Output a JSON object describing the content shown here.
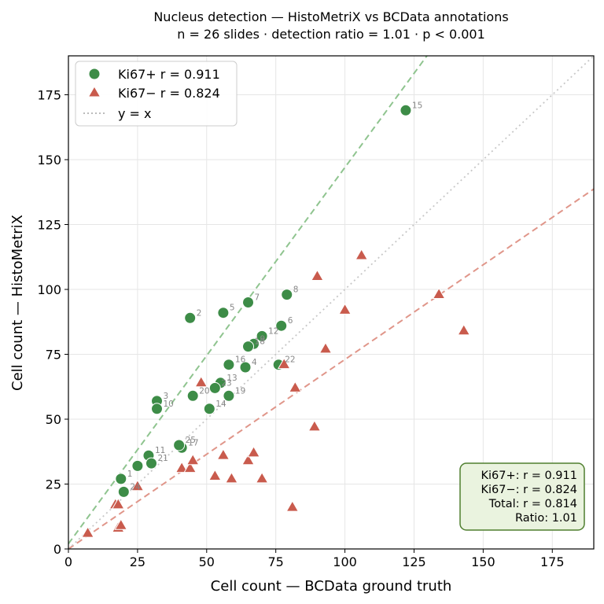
{
  "chart_data": {
    "type": "scatter",
    "title": "Nucleus detection — HistoMetriX vs BCData annotations",
    "subtitle": "n = 26 slides  ·  detection ratio = 1.01  ·  p < 0.001",
    "xlabel": "Cell count — BCData ground truth",
    "ylabel": "Cell count — HistoMetriX",
    "xlim": [
      0,
      190
    ],
    "ylim": [
      0,
      190
    ],
    "x_ticks": [
      0,
      25,
      50,
      75,
      100,
      125,
      150,
      175
    ],
    "y_ticks": [
      0,
      25,
      50,
      75,
      100,
      125,
      150,
      175
    ],
    "x_tick_labels": [
      "0",
      "25",
      "50",
      "75",
      "100",
      "125",
      "150",
      "175"
    ],
    "y_tick_labels": [
      "0",
      "25",
      "50",
      "75",
      "100",
      "125",
      "150",
      "175"
    ],
    "grid": true,
    "legend_position": "top-left",
    "legend": [
      {
        "label": "Ki67+  r = 0.911",
        "marker": "circle",
        "color": "#3d8c47"
      },
      {
        "label": "Ki67−  r = 0.824",
        "marker": "triangle",
        "color": "#c95b4d"
      },
      {
        "label": "y = x",
        "marker": "dotted-line",
        "color": "#bbbbbb"
      }
    ],
    "series": [
      {
        "name": "Ki67+",
        "marker": "circle",
        "color": "#3d8c47",
        "points": [
          {
            "x": 19,
            "y": 27,
            "label": "1"
          },
          {
            "x": 44,
            "y": 89,
            "label": "2"
          },
          {
            "x": 32,
            "y": 57,
            "label": "3"
          },
          {
            "x": 64,
            "y": 70,
            "label": "4"
          },
          {
            "x": 56,
            "y": 91,
            "label": "5"
          },
          {
            "x": 77,
            "y": 86,
            "label": "6"
          },
          {
            "x": 65,
            "y": 95,
            "label": "7"
          },
          {
            "x": 79,
            "y": 98,
            "label": "8"
          },
          {
            "x": 67,
            "y": 79,
            "label": "9"
          },
          {
            "x": 32,
            "y": 54,
            "label": "10"
          },
          {
            "x": 29,
            "y": 36,
            "label": "11"
          },
          {
            "x": 70,
            "y": 82,
            "label": "12"
          },
          {
            "x": 55,
            "y": 64,
            "label": "13"
          },
          {
            "x": 51,
            "y": 54,
            "label": "14"
          },
          {
            "x": 122,
            "y": 169,
            "label": "15"
          },
          {
            "x": 58,
            "y": 71,
            "label": "16"
          },
          {
            "x": 41,
            "y": 39,
            "label": "17"
          },
          {
            "x": 65,
            "y": 78,
            "label": "18"
          },
          {
            "x": 58,
            "y": 59,
            "label": "19"
          },
          {
            "x": 45,
            "y": 59,
            "label": "20"
          },
          {
            "x": 30,
            "y": 33,
            "label": "21"
          },
          {
            "x": 76,
            "y": 71,
            "label": "22"
          },
          {
            "x": 53,
            "y": 62,
            "label": "23"
          },
          {
            "x": 20,
            "y": 22,
            "label": "24"
          },
          {
            "x": 40,
            "y": 40,
            "label": "25"
          },
          {
            "x": 25,
            "y": 32,
            "label": ""
          }
        ]
      },
      {
        "name": "Ki67−",
        "marker": "triangle",
        "color": "#c95b4d",
        "points": [
          {
            "x": 7,
            "y": 6
          },
          {
            "x": 18,
            "y": 8
          },
          {
            "x": 19,
            "y": 9
          },
          {
            "x": 17,
            "y": 17
          },
          {
            "x": 18,
            "y": 17
          },
          {
            "x": 25,
            "y": 24
          },
          {
            "x": 41,
            "y": 31
          },
          {
            "x": 44,
            "y": 31
          },
          {
            "x": 45,
            "y": 34
          },
          {
            "x": 53,
            "y": 28
          },
          {
            "x": 56,
            "y": 36
          },
          {
            "x": 59,
            "y": 27
          },
          {
            "x": 65,
            "y": 34
          },
          {
            "x": 67,
            "y": 37
          },
          {
            "x": 70,
            "y": 27
          },
          {
            "x": 81,
            "y": 16
          },
          {
            "x": 82,
            "y": 62
          },
          {
            "x": 89,
            "y": 47
          },
          {
            "x": 90,
            "y": 105
          },
          {
            "x": 93,
            "y": 77
          },
          {
            "x": 100,
            "y": 92
          },
          {
            "x": 106,
            "y": 113
          },
          {
            "x": 134,
            "y": 98
          },
          {
            "x": 143,
            "y": 84
          },
          {
            "x": 48,
            "y": 64
          },
          {
            "x": 78,
            "y": 71
          }
        ]
      }
    ],
    "fit_lines": [
      {
        "series": "Ki67+",
        "style": "dashed",
        "color": "#8fc48f",
        "slope": 1.45,
        "intercept": 2
      },
      {
        "series": "Ki67−",
        "style": "dashed",
        "color": "#e0968a",
        "slope": 0.73,
        "intercept": 0
      },
      {
        "series": "y = x",
        "style": "dotted",
        "color": "#c8c8c8",
        "slope": 1,
        "intercept": 0
      }
    ],
    "stats_box": {
      "lines": [
        "Ki67+:  r = 0.911",
        "Ki67−:  r = 0.824",
        "Total:   r = 0.814",
        "Ratio: 1.01"
      ],
      "facecolor": "#eaf3df",
      "edgecolor": "#4f7f2f"
    }
  }
}
